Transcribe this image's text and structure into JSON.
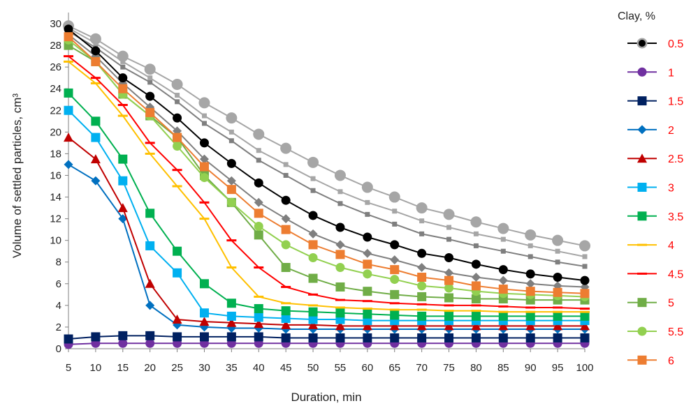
{
  "chart_data": {
    "type": "line",
    "title": "",
    "xlabel": "Duration, min",
    "ylabel": "Volume of settled particles, cm³",
    "x": [
      5,
      10,
      15,
      20,
      25,
      30,
      35,
      40,
      45,
      50,
      55,
      60,
      65,
      70,
      75,
      80,
      85,
      90,
      95,
      100
    ],
    "ylim": [
      0,
      30
    ],
    "ytick_step": 2,
    "grid": false,
    "legend": {
      "title": "Clay, %",
      "position": "right"
    },
    "series": [
      {
        "name": "0.5",
        "color": "#000000",
        "marker": "circle",
        "label_color": "#ff0000",
        "values": [
          29.5,
          27.5,
          25.0,
          23.3,
          21.3,
          19.0,
          17.1,
          15.3,
          13.7,
          12.3,
          11.2,
          10.3,
          9.6,
          8.8,
          8.4,
          7.8,
          7.3,
          6.9,
          6.6,
          6.3
        ]
      },
      {
        "name": "1",
        "color": "#7030a0",
        "marker": "circle",
        "label_color": "#ff0000",
        "values": [
          0.4,
          0.5,
          0.5,
          0.5,
          0.5,
          0.5,
          0.5,
          0.5,
          0.5,
          0.5,
          0.5,
          0.5,
          0.5,
          0.5,
          0.5,
          0.5,
          0.5,
          0.5,
          0.5,
          0.5
        ]
      },
      {
        "name": "1.5",
        "color": "#002060",
        "marker": "square",
        "label_color": "#ff0000",
        "values": [
          0.9,
          1.1,
          1.2,
          1.2,
          1.1,
          1.1,
          1.1,
          1.1,
          1.0,
          1.0,
          1.0,
          1.0,
          1.0,
          1.0,
          1.0,
          1.0,
          1.0,
          1.0,
          1.0,
          1.0
        ]
      },
      {
        "name": "2",
        "color": "#0070c0",
        "marker": "diamond",
        "label_color": "#ff0000",
        "values": [
          17.0,
          15.5,
          12.0,
          4.0,
          2.2,
          2.0,
          1.9,
          1.9,
          1.8,
          1.8,
          1.8,
          1.8,
          1.8,
          1.8,
          1.8,
          1.8,
          1.8,
          1.8,
          1.8,
          1.8
        ]
      },
      {
        "name": "2.5",
        "color": "#c00000",
        "marker": "triangle",
        "label_color": "#ff0000",
        "values": [
          19.5,
          17.5,
          13.0,
          6.0,
          2.7,
          2.5,
          2.4,
          2.3,
          2.2,
          2.2,
          2.1,
          2.1,
          2.1,
          2.1,
          2.1,
          2.1,
          2.1,
          2.1,
          2.1,
          2.1
        ]
      },
      {
        "name": "3",
        "color": "#00b0f0",
        "marker": "square",
        "label_color": "#ff0000",
        "values": [
          22.0,
          19.5,
          15.5,
          9.5,
          7.0,
          3.3,
          3.0,
          2.9,
          2.8,
          2.7,
          2.7,
          2.6,
          2.6,
          2.6,
          2.6,
          2.6,
          2.6,
          2.6,
          2.6,
          2.6
        ]
      },
      {
        "name": "3.5",
        "color": "#00b050",
        "marker": "square",
        "label_color": "#ff0000",
        "values": [
          23.6,
          21.0,
          17.5,
          12.5,
          9.0,
          6.0,
          4.2,
          3.7,
          3.5,
          3.4,
          3.3,
          3.2,
          3.1,
          3.0,
          3.0,
          3.0,
          3.0,
          3.0,
          3.0,
          3.0
        ]
      },
      {
        "name": "4",
        "color": "#ffc000",
        "marker": "dash",
        "label_color": "#ff0000",
        "values": [
          26.5,
          24.5,
          21.5,
          18.0,
          15.0,
          12.0,
          7.5,
          4.8,
          4.2,
          4.0,
          3.8,
          3.7,
          3.6,
          3.6,
          3.5,
          3.5,
          3.4,
          3.4,
          3.4,
          3.4
        ]
      },
      {
        "name": "4.5",
        "color": "#ff0000",
        "marker": "dash",
        "label_color": "#ff0000",
        "values": [
          27.0,
          25.0,
          22.5,
          19.0,
          16.5,
          13.5,
          10.0,
          7.5,
          5.7,
          5.0,
          4.5,
          4.4,
          4.2,
          4.1,
          4.0,
          4.0,
          3.9,
          3.8,
          3.8,
          3.7
        ]
      },
      {
        "name": "5",
        "color": "#70ad47",
        "marker": "square",
        "label_color": "#ff0000",
        "values": [
          28.0,
          26.5,
          23.5,
          21.5,
          19.5,
          16.0,
          13.5,
          10.5,
          7.5,
          6.5,
          5.7,
          5.3,
          5.0,
          4.8,
          4.7,
          4.6,
          4.6,
          4.5,
          4.5,
          4.5
        ]
      },
      {
        "name": "5.5",
        "color": "#92d050",
        "marker": "circle",
        "label_color": "#ff0000",
        "values": [
          28.5,
          26.5,
          23.5,
          21.5,
          18.7,
          15.8,
          13.5,
          11.3,
          9.6,
          8.4,
          7.5,
          6.9,
          6.4,
          5.8,
          5.6,
          5.3,
          5.1,
          5.0,
          4.9,
          4.8
        ]
      },
      {
        "name": "6",
        "color": "#ed7d31",
        "marker": "square",
        "label_color": "#ff0000",
        "values": [
          28.8,
          26.5,
          24.0,
          21.8,
          19.5,
          16.8,
          14.7,
          12.5,
          11.0,
          9.6,
          8.7,
          7.8,
          7.3,
          6.6,
          6.3,
          5.8,
          5.5,
          5.3,
          5.2,
          5.1
        ]
      },
      {
        "name": "",
        "color": "#7f7f7f",
        "marker": "diamond",
        "legend": false,
        "values": [
          29.0,
          27.0,
          24.5,
          22.3,
          20.1,
          17.5,
          15.5,
          13.5,
          12.0,
          10.6,
          9.6,
          8.8,
          8.2,
          7.5,
          7.0,
          6.6,
          6.3,
          6.0,
          5.8,
          5.7
        ]
      },
      {
        "name": "",
        "color": "#7f7f7f",
        "marker": "square-small",
        "legend": false,
        "values": [
          29.3,
          27.8,
          26.0,
          24.6,
          22.8,
          20.8,
          19.2,
          17.4,
          16.0,
          14.6,
          13.4,
          12.4,
          11.5,
          10.6,
          10.1,
          9.5,
          9.0,
          8.5,
          8.0,
          7.6
        ]
      },
      {
        "name": "",
        "color": "#a6a6a6",
        "marker": "square-small",
        "legend": false,
        "values": [
          29.6,
          28.2,
          26.5,
          25.0,
          23.4,
          21.5,
          20.0,
          18.3,
          17.0,
          15.7,
          14.5,
          13.5,
          12.7,
          11.8,
          11.2,
          10.6,
          10.1,
          9.5,
          9.0,
          8.5
        ]
      },
      {
        "name": "",
        "color": "#a6a6a6",
        "marker": "circle-large",
        "legend": false,
        "values": [
          29.8,
          28.6,
          27.0,
          25.8,
          24.4,
          22.7,
          21.3,
          19.8,
          18.5,
          17.2,
          16.0,
          14.9,
          14.0,
          13.0,
          12.4,
          11.7,
          11.1,
          10.5,
          10.0,
          9.5
        ]
      }
    ]
  }
}
